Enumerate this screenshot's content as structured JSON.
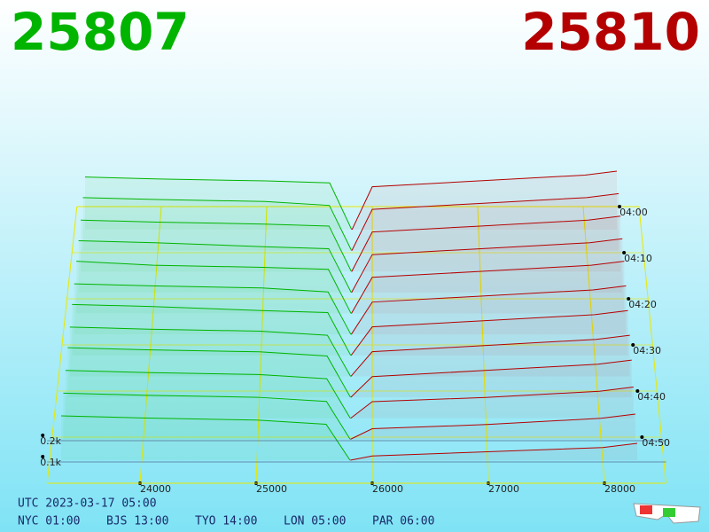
{
  "chart_data": {
    "type": "depth3d",
    "bid_price": 25807,
    "ask_price": 25810,
    "bid_color": "#00b400",
    "ask_color": "#b40000",
    "xlim": [
      23200,
      28530
    ],
    "xticks": [
      24000,
      25000,
      26000,
      27000,
      28000
    ],
    "zticks": [
      {
        "value": 0.1,
        "label": "0.1k"
      },
      {
        "value": 0.2,
        "label": "0.2k"
      }
    ],
    "time_ticks": [
      "04:00",
      "04:10",
      "04:20",
      "04:30",
      "04:40",
      "04:50"
    ],
    "bid_prices": [
      23300,
      24000,
      25000,
      25600,
      25807
    ],
    "ask_prices": [
      25810,
      26000,
      27000,
      28000,
      28300
    ],
    "bids": [
      [
        0.27,
        0.26,
        0.25,
        0.24,
        0
      ],
      [
        0.27,
        0.26,
        0.25,
        0.23,
        0
      ],
      [
        0.26,
        0.25,
        0.24,
        0.23,
        0
      ],
      [
        0.26,
        0.25,
        0.23,
        0.22,
        0
      ],
      [
        0.26,
        0.24,
        0.23,
        0.22,
        0
      ],
      [
        0.25,
        0.24,
        0.23,
        0.21,
        0
      ],
      [
        0.25,
        0.24,
        0.22,
        0.21,
        0
      ],
      [
        0.24,
        0.23,
        0.22,
        0.2,
        0
      ],
      [
        0.24,
        0.23,
        0.22,
        0.2,
        0
      ],
      [
        0.23,
        0.22,
        0.21,
        0.19,
        0
      ],
      [
        0.22,
        0.21,
        0.2,
        0.18,
        0
      ],
      [
        0.21,
        0.2,
        0.19,
        0.17,
        0
      ]
    ],
    "asks": [
      [
        0,
        0.22,
        0.25,
        0.28,
        0.3
      ],
      [
        0,
        0.21,
        0.24,
        0.27,
        0.29
      ],
      [
        0,
        0.2,
        0.23,
        0.26,
        0.28
      ],
      [
        0,
        0.19,
        0.22,
        0.25,
        0.27
      ],
      [
        0,
        0.18,
        0.21,
        0.24,
        0.26
      ],
      [
        0,
        0.16,
        0.19,
        0.22,
        0.24
      ],
      [
        0,
        0.14,
        0.17,
        0.2,
        0.22
      ],
      [
        0,
        0.12,
        0.15,
        0.18,
        0.2
      ],
      [
        0,
        0.1,
        0.13,
        0.16,
        0.18
      ],
      [
        0,
        0.08,
        0.1,
        0.13,
        0.15
      ],
      [
        0,
        0.05,
        0.07,
        0.1,
        0.12
      ],
      [
        0,
        0.02,
        0.04,
        0.06,
        0.08
      ]
    ],
    "footer": {
      "utc": "UTC 2023-03-17 05:00",
      "zones": [
        "NYC 01:00",
        "BJS 13:00",
        "TYO 14:00",
        "LON 05:00",
        "PAR 06:00"
      ]
    }
  }
}
